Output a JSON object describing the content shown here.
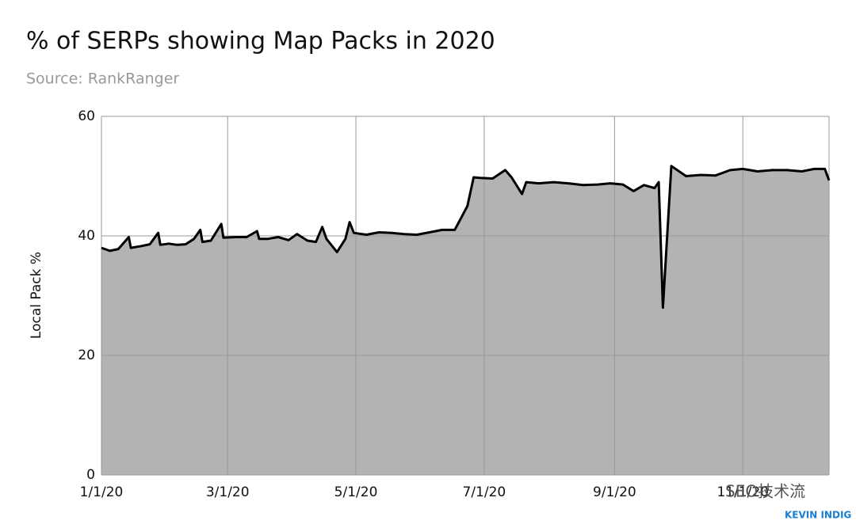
{
  "chart_data": {
    "type": "area",
    "title": "% of SERPs showing Map Packs in 2020",
    "subtitle": "Source: RankRanger",
    "y_label": "Local Pack %",
    "annotations": [
      "SEO技术流",
      "KEVIN INDIG"
    ],
    "x": [
      "2020-01-01",
      "2020-01-05",
      "2020-01-09",
      "2020-01-14",
      "2020-01-15",
      "2020-01-20",
      "2020-01-24",
      "2020-01-28",
      "2020-01-29",
      "2020-02-02",
      "2020-02-06",
      "2020-02-10",
      "2020-02-14",
      "2020-02-17",
      "2020-02-18",
      "2020-02-22",
      "2020-02-27",
      "2020-02-28",
      "2020-03-05",
      "2020-03-10",
      "2020-03-15",
      "2020-03-16",
      "2020-03-20",
      "2020-03-25",
      "2020-03-30",
      "2020-04-03",
      "2020-04-08",
      "2020-04-12",
      "2020-04-15",
      "2020-04-17",
      "2020-04-22",
      "2020-04-26",
      "2020-04-28",
      "2020-04-30",
      "2020-05-06",
      "2020-05-12",
      "2020-05-18",
      "2020-05-24",
      "2020-05-30",
      "2020-06-05",
      "2020-06-11",
      "2020-06-17",
      "2020-06-20",
      "2020-06-23",
      "2020-06-26",
      "2020-06-29",
      "2020-07-05",
      "2020-07-11",
      "2020-07-14",
      "2020-07-19",
      "2020-07-21",
      "2020-07-27",
      "2020-08-03",
      "2020-08-10",
      "2020-08-17",
      "2020-08-24",
      "2020-08-30",
      "2020-09-05",
      "2020-09-10",
      "2020-09-15",
      "2020-09-20",
      "2020-09-22",
      "2020-09-24",
      "2020-09-28",
      "2020-10-05",
      "2020-10-12",
      "2020-10-19",
      "2020-10-26",
      "2020-11-01",
      "2020-11-08",
      "2020-11-15",
      "2020-11-22",
      "2020-11-29",
      "2020-12-05",
      "2020-12-10",
      "2020-12-12"
    ],
    "series": [
      {
        "name": "Local Pack %",
        "color": "#000000",
        "fill": "#b3b3b3",
        "values": [
          38,
          37.5,
          37.8,
          39.8,
          38,
          38.3,
          38.6,
          40.5,
          38.5,
          38.7,
          38.5,
          38.6,
          39.5,
          41,
          39,
          39.2,
          42,
          39.7,
          39.8,
          39.8,
          40.8,
          39.5,
          39.5,
          39.8,
          39.3,
          40.3,
          39.2,
          39,
          41.5,
          39.5,
          37.3,
          39.5,
          42.3,
          40.5,
          40.2,
          40.6,
          40.5,
          40.3,
          40.2,
          40.6,
          41,
          41,
          43,
          45,
          49.8,
          49.7,
          49.6,
          51,
          49.8,
          47,
          49,
          48.8,
          49,
          48.8,
          48.5,
          48.6,
          48.8,
          48.6,
          47.5,
          48.5,
          48,
          49,
          28,
          51.7,
          50,
          50.2,
          50.1,
          51,
          51.2,
          50.8,
          51,
          51,
          50.8,
          51.2,
          51.2,
          49.3
        ]
      }
    ],
    "xlim": [
      "2020-01-01",
      "2020-12-12"
    ],
    "xticks": [
      {
        "value": "2020-01-01",
        "label": "1/1/20"
      },
      {
        "value": "2020-03-01",
        "label": "3/1/20"
      },
      {
        "value": "2020-05-01",
        "label": "5/1/20"
      },
      {
        "value": "2020-07-01",
        "label": "7/1/20"
      },
      {
        "value": "2020-09-01",
        "label": "9/1/20"
      },
      {
        "value": "2020-11-01",
        "label": "11/1/20"
      }
    ],
    "ylim": [
      0,
      60
    ],
    "yticks": [
      0,
      20,
      40,
      60
    ],
    "grid": true
  }
}
